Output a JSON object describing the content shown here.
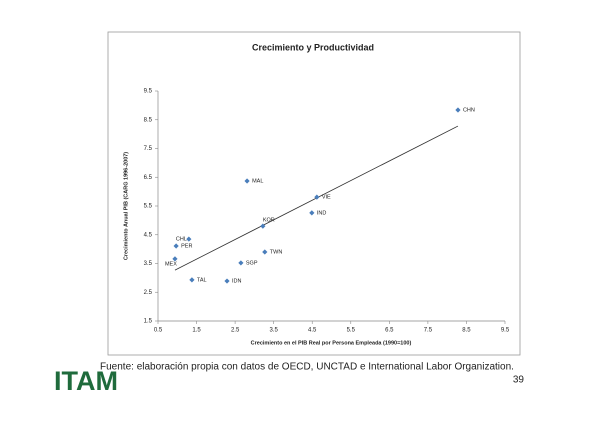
{
  "chart_data": {
    "type": "scatter",
    "title": "Crecimiento y Productividad",
    "x_label": "Crecimiento en el PIB Real por Persona Empleada (1990=100)",
    "y_label": "Crecimiento Anual PIB (CARG 1996-2007)",
    "xlim": [
      0.5,
      9.5
    ],
    "xticks": [
      0.5,
      1.5,
      2.5,
      3.5,
      4.5,
      5.5,
      6.5,
      7.5,
      8.5,
      9.5
    ],
    "ylim": [
      1.5,
      9.5
    ],
    "yticks": [
      1.5,
      2.5,
      3.5,
      4.5,
      5.5,
      6.5,
      7.5,
      8.5,
      9.5
    ],
    "series": [
      {
        "color": "#4a7ebb",
        "labels": [
          "CHN",
          "MAL",
          "VIE",
          "IND",
          "KOR",
          "CHL",
          "PER",
          "TWN",
          "SGP",
          "MEX",
          "TAL",
          "IDN"
        ],
        "x": [
          8.28,
          2.81,
          4.62,
          4.49,
          3.22,
          1.3,
          0.97,
          3.27,
          2.65,
          0.94,
          1.38,
          2.29
        ],
        "values": [
          8.84,
          6.37,
          5.81,
          5.26,
          4.8,
          4.35,
          4.11,
          3.9,
          3.52,
          3.66,
          2.93,
          2.89
        ]
      }
    ],
    "trendline": {
      "color": "#333333",
      "x": [
        0.94,
        8.28
      ],
      "values": [
        3.27,
        8.28
      ]
    }
  },
  "source": "Fuente: elaboración propia con datos de OECD, UNCTAD e International Labor Organization.",
  "page_number": "39",
  "logo": "ITAM"
}
